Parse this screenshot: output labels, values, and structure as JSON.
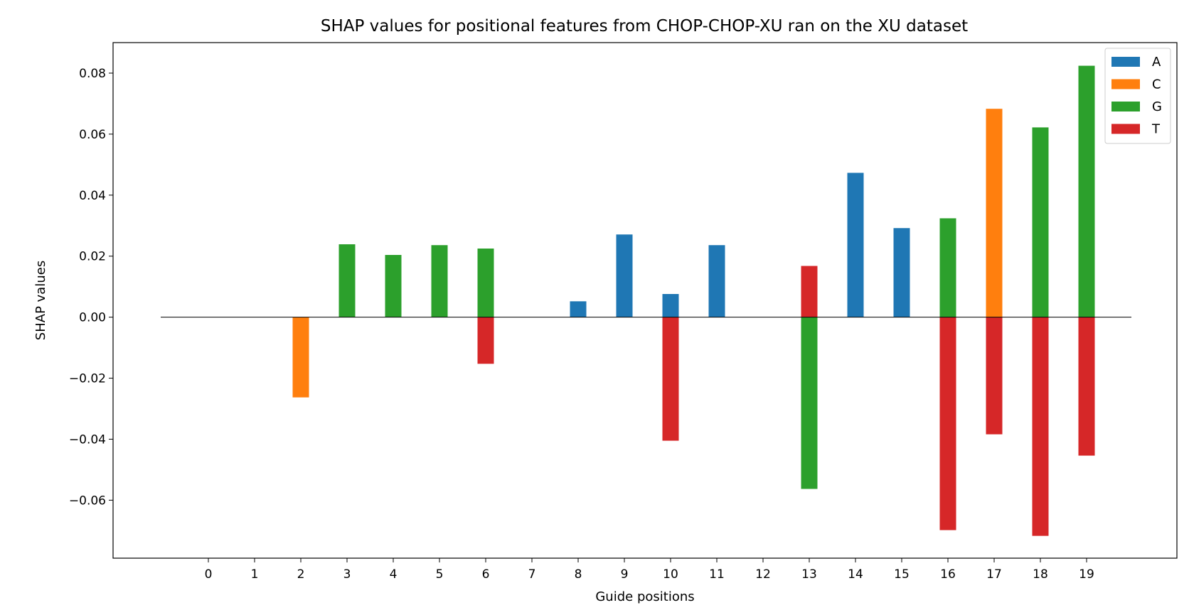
{
  "chart_data": {
    "type": "bar",
    "title": "SHAP values for positional features from CHOP-CHOP-XU ran on the XU dataset",
    "xlabel": "Guide positions",
    "ylabel": "SHAP values",
    "categories": [
      "0",
      "1",
      "2",
      "3",
      "4",
      "5",
      "6",
      "7",
      "8",
      "9",
      "10",
      "11",
      "12",
      "13",
      "14",
      "15",
      "16",
      "17",
      "18",
      "19"
    ],
    "ylim": [
      -0.079,
      0.09
    ],
    "yticks": [
      0.08,
      0.06,
      0.04,
      0.02,
      0.0,
      -0.02,
      -0.04,
      -0.06
    ],
    "ytick_labels": [
      "0.08",
      "0.06",
      "0.04",
      "0.02",
      "0.00",
      "−0.02",
      "−0.04",
      "−0.06"
    ],
    "grid": false,
    "legend_position": "top-right",
    "series": [
      {
        "name": "A",
        "color": "#1f77b4",
        "values": [
          null,
          null,
          null,
          null,
          null,
          null,
          null,
          null,
          0.0052,
          0.0271,
          0.0076,
          0.0236,
          null,
          null,
          0.0473,
          0.0292,
          null,
          null,
          null,
          null
        ]
      },
      {
        "name": "C",
        "color": "#ff7f0e",
        "values": [
          null,
          null,
          -0.0263,
          null,
          null,
          null,
          null,
          null,
          null,
          null,
          null,
          null,
          null,
          null,
          null,
          null,
          null,
          0.0683,
          null,
          null
        ]
      },
      {
        "name": "G",
        "color": "#2ca02c",
        "values": [
          null,
          null,
          null,
          0.0239,
          0.0204,
          0.0236,
          0.0225,
          null,
          null,
          null,
          null,
          null,
          null,
          -0.0563,
          null,
          null,
          0.0324,
          null,
          0.0622,
          0.0824
        ]
      },
      {
        "name": "T",
        "color": "#d62728",
        "values": [
          null,
          null,
          null,
          null,
          null,
          null,
          -0.0153,
          null,
          null,
          null,
          -0.0405,
          null,
          null,
          0.0168,
          null,
          null,
          -0.0698,
          -0.0384,
          -0.0717,
          -0.0454
        ]
      }
    ]
  }
}
